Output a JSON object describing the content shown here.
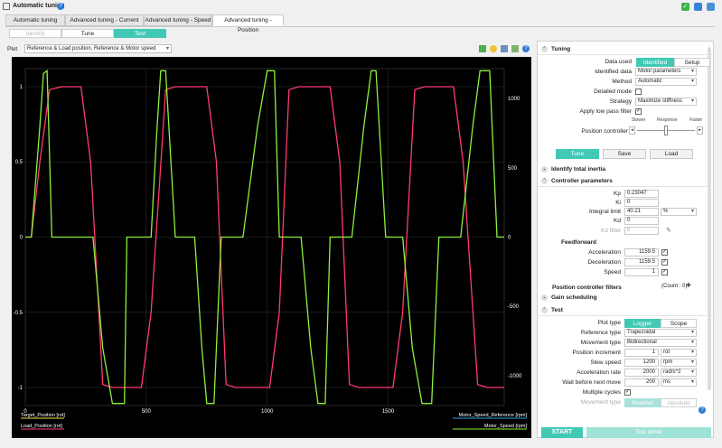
{
  "app": {
    "title": "Automatic tuning"
  },
  "tabs": [
    "Automatic tuning",
    "Advanced tuning - Current",
    "Advanced tuning - Speed",
    "Advanced tuning - Position"
  ],
  "mode": {
    "options": [
      "Identify",
      "Tune",
      "Test"
    ],
    "active": "Test"
  },
  "plot": {
    "label": "Plot",
    "selected": "Reference & Load position, Reference & Motor speed"
  },
  "legend": {
    "left": [
      {
        "name": "Target_Position [rot]",
        "color": "#f5e642"
      },
      {
        "name": "Load_Position [rot]",
        "color": "#ff3b6f"
      }
    ],
    "right": [
      {
        "name": "Motor_Speed_Reference [rpm]",
        "color": "#2aa0e0"
      },
      {
        "name": "Motor_Speed [rpm]",
        "color": "#8ef03c"
      }
    ]
  },
  "colors": {
    "accent": "#42c9b5",
    "position": "#ff3b6f",
    "speed": "#8ef03c"
  },
  "chart_data": {
    "type": "line",
    "x_ticks": [
      0,
      500,
      1000,
      1500
    ],
    "y_left_ticks": [
      "1",
      "0.5",
      "0",
      "-0.5",
      "-1"
    ],
    "y_right_ticks": [
      "1000",
      "500",
      "0",
      "-500",
      "-1000"
    ],
    "xlim": [
      0,
      1980
    ],
    "ylim_left": [
      -1.12,
      1.12
    ],
    "ylim_right": [
      -1215,
      1215
    ],
    "grid": true,
    "series": [
      {
        "name": "Load_Position [rot]",
        "axis": "left",
        "x": [
          0,
          25,
          60,
          100,
          150,
          190,
          230,
          270,
          320,
          360,
          400,
          440,
          480,
          520,
          580,
          620,
          660,
          700,
          750,
          790,
          830,
          870,
          910,
          950,
          1010,
          1050,
          1090,
          1130,
          1180,
          1220,
          1260,
          1300,
          1340,
          1380,
          1440,
          1480,
          1520,
          1560,
          1610,
          1650,
          1690,
          1730,
          1770,
          1810,
          1870,
          1910,
          1950,
          1980
        ],
        "y": [
          0,
          0,
          0.5,
          0.98,
          1,
          1,
          1,
          0.5,
          -0.98,
          -1,
          -1,
          -1,
          -1,
          -0.5,
          0.98,
          1,
          1,
          1,
          1,
          0.5,
          -0.98,
          -1,
          -1,
          -1,
          -1,
          -0.5,
          0.98,
          1,
          1,
          1,
          1,
          0.5,
          -0.98,
          -1,
          -1,
          -1,
          -1,
          -0.5,
          0.98,
          1,
          1,
          1,
          1,
          0.5,
          -0.98,
          -1,
          -1,
          -1
        ]
      },
      {
        "name": "Motor_Speed [rpm]",
        "axis": "right",
        "x": [
          0,
          25,
          60,
          75,
          90,
          110,
          130,
          200,
          280,
          320,
          360,
          390,
          410,
          420,
          440,
          470,
          500,
          520,
          545,
          560,
          580,
          620,
          660,
          700,
          730,
          750,
          780,
          810,
          850,
          880,
          900,
          960,
          1000,
          1030,
          1050,
          1070,
          1090,
          1140,
          1180,
          1210,
          1240,
          1260,
          1290,
          1320,
          1350,
          1400,
          1430,
          1450,
          1490,
          1530,
          1560,
          1600,
          1640,
          1680,
          1710,
          1730,
          1750,
          1800,
          1850,
          1880,
          1920,
          1950,
          1980
        ],
        "y": [
          0,
          0,
          800,
          1180,
          1200,
          0,
          0,
          0,
          0,
          -800,
          -1200,
          -1200,
          -1200,
          0,
          0,
          0,
          0,
          0,
          800,
          1200,
          1200,
          0,
          0,
          0,
          -800,
          -1200,
          -1200,
          0,
          0,
          0,
          0,
          800,
          1200,
          1200,
          0,
          0,
          0,
          0,
          -800,
          -1200,
          -1200,
          0,
          0,
          0,
          0,
          800,
          1200,
          1200,
          0,
          0,
          0,
          -800,
          -1200,
          -1200,
          0,
          0,
          0,
          0,
          800,
          1200,
          1200,
          0,
          0
        ]
      }
    ]
  },
  "right": {
    "tuning": {
      "header": "Tuning",
      "data_used_label": "Data used",
      "data_used_options": [
        "Identified",
        "Setup"
      ],
      "identified_data_label": "Identified data",
      "identified_data": "Motor parameters",
      "method_label": "Method",
      "method": "Automatic",
      "detailed_mode_label": "Detailed mode",
      "strategy_label": "Strategy",
      "strategy": "Maximize stiffness",
      "lpf_label": "Apply low pass filter",
      "slider_labels": [
        "Slower",
        "Response",
        "Faster"
      ],
      "position_controller_label": "Position controller",
      "buttons": [
        "Tune",
        "Save",
        "Load"
      ]
    },
    "identify_inertia": "Identify total inertia",
    "controller": {
      "header": "Controller parameters",
      "kp_label": "Kp",
      "kp": "0.23047",
      "ki_label": "Ki",
      "ki": "0",
      "integral_label": "Integral limit",
      "integral": "40.21",
      "integral_unit": "%",
      "kd_label": "Kd",
      "kd": "0",
      "kd_filter_label": "Kd filter",
      "kd_filter": "0",
      "feedforward": "Feedforward",
      "accel_label": "Acceleration",
      "accel": "1159.5",
      "decel_label": "Deceleration",
      "decel": "1159.5",
      "speed_label": "Speed",
      "speed": "1"
    },
    "filters": {
      "label": "Position controller filters",
      "count": "(Count : 0)"
    },
    "gain": "Gain scheduling",
    "test": {
      "header": "Test",
      "plot_type_label": "Plot type",
      "plot_type_options": [
        "Logger",
        "Scope"
      ],
      "ref_type_label": "Reference type",
      "ref_type": "Trapezoidal",
      "move_type_label": "Movement type",
      "move_type": "Bidirectional",
      "pos_inc_label": "Position increment",
      "pos_inc": "1",
      "pos_inc_unit": "rot",
      "slew_label": "Slew speed",
      "slew": "1200",
      "slew_unit": "rpm",
      "acc_rate_label": "Acceleration rate",
      "acc_rate": "2000",
      "acc_rate_unit": "rad/s^2",
      "wait_label": "Wait before next move",
      "wait": "200",
      "wait_unit": "ms",
      "multi_label": "Multiple cycles",
      "movement2_label": "Movement type",
      "movement2_options": [
        "Relative",
        "Absolute"
      ]
    }
  },
  "footer": {
    "start": "START",
    "status": "Test done!"
  }
}
